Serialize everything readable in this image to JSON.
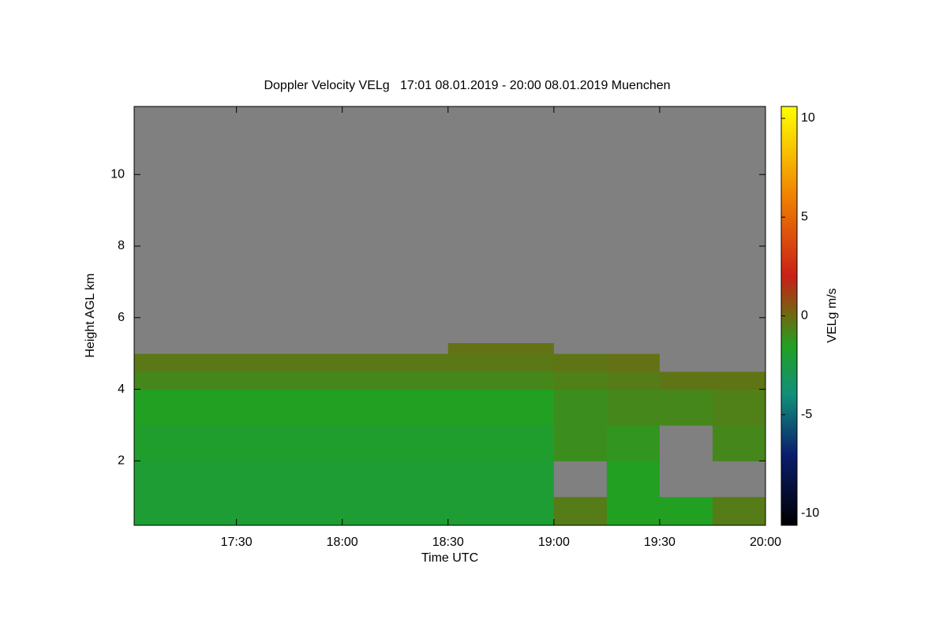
{
  "chart_data": {
    "type": "heatmap",
    "title": "Doppler Velocity VELg   17:01 08.01.2019 - 20:00 08.01.2019 Muenchen",
    "xlabel": "Time UTC",
    "ylabel": "Height AGL km",
    "colorbar_label": "VELg m/s",
    "xlim": [
      17.0167,
      20.0
    ],
    "xticks": [
      {
        "value": 17.5,
        "label": "17:30"
      },
      {
        "value": 18.0,
        "label": "18:00"
      },
      {
        "value": 18.5,
        "label": "18:30"
      },
      {
        "value": 19.0,
        "label": "19:00"
      },
      {
        "value": 19.5,
        "label": "19:30"
      },
      {
        "value": 20.0,
        "label": "20:00"
      }
    ],
    "ylim": [
      0.2,
      11.9
    ],
    "yticks": [
      2,
      4,
      6,
      8,
      10
    ],
    "zlim": [
      -10.6,
      10.6
    ],
    "zticks": [
      -10,
      -5,
      0,
      5,
      10
    ],
    "colorscale": [
      [
        -10.6,
        "#000000"
      ],
      [
        -7,
        "#0a1e6e"
      ],
      [
        -4,
        "#10907a"
      ],
      [
        -1.5,
        "#22a022"
      ],
      [
        0,
        "#6e6a12"
      ],
      [
        2,
        "#c82018"
      ],
      [
        6,
        "#f08000"
      ],
      [
        10.6,
        "#ffff00"
      ]
    ],
    "missing_color": "#808080",
    "x_edges": [
      17.0167,
      17.25,
      17.5,
      17.75,
      18.0,
      18.25,
      18.5,
      18.75,
      19.0,
      19.25,
      19.5,
      19.75,
      20.0
    ],
    "y_edges": [
      0.2,
      1,
      2,
      3,
      4,
      4.5,
      5,
      5.3,
      11.9
    ],
    "values": [
      [
        -2.0,
        -2.0,
        -2.0,
        -2.0,
        -2.0,
        -2.0,
        -2.0,
        -2.0,
        -0.5,
        -1.5,
        -1.5,
        -0.5
      ],
      [
        -2.0,
        -2.0,
        -2.0,
        -2.0,
        -2.0,
        -2.0,
        -2.0,
        -2.0,
        null,
        -1.5,
        null,
        null
      ],
      [
        -1.8,
        -1.8,
        -1.8,
        -1.8,
        -1.8,
        -1.8,
        -1.8,
        -1.8,
        -1.0,
        -1.2,
        null,
        -0.8
      ],
      [
        -1.5,
        -1.5,
        -1.5,
        -1.5,
        -1.5,
        -1.5,
        -1.5,
        -1.5,
        -1.0,
        -0.8,
        -0.8,
        -0.6
      ],
      [
        -0.8,
        -0.8,
        -0.8,
        -0.8,
        -0.8,
        -0.8,
        -0.8,
        -0.8,
        -0.6,
        -0.5,
        -0.3,
        -0.3
      ],
      [
        -0.4,
        -0.4,
        -0.4,
        -0.4,
        -0.4,
        -0.4,
        -0.4,
        -0.4,
        -0.3,
        -0.2,
        null,
        null
      ],
      [
        null,
        null,
        null,
        null,
        null,
        null,
        -0.2,
        -0.2,
        null,
        null,
        null,
        null
      ],
      [
        null,
        null,
        null,
        null,
        null,
        null,
        null,
        null,
        null,
        null,
        null,
        null
      ]
    ]
  }
}
